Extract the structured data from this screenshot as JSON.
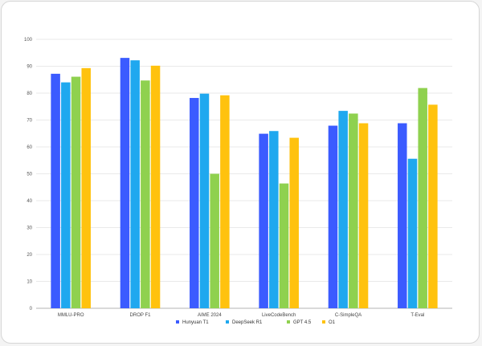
{
  "chart_data": {
    "type": "bar",
    "categories": [
      "MMLU-PRO",
      "DROP F1",
      "AIME 2024",
      "LiveCodeBench",
      "C-SimpleQA",
      "T-Eval"
    ],
    "series": [
      {
        "name": "Hunyuan T1",
        "color": "#3b5bff",
        "values": [
          87.2,
          93.1,
          78.2,
          64.9,
          67.9,
          68.8
        ]
      },
      {
        "name": "DeepSeek R1",
        "color": "#1fa8ef",
        "values": [
          84.0,
          92.2,
          79.8,
          65.9,
          73.4,
          55.6
        ]
      },
      {
        "name": "GPT 4.5",
        "color": "#8fd14f",
        "values": [
          86.1,
          84.7,
          50.0,
          46.4,
          72.4,
          81.9
        ]
      },
      {
        "name": "O1",
        "color": "#ffc20e",
        "values": [
          89.3,
          90.2,
          79.2,
          63.4,
          68.8,
          75.7
        ]
      }
    ],
    "y_ticks": [
      "0",
      "10",
      "20",
      "30",
      "40",
      "50",
      "60",
      "70",
      "80",
      "90",
      "100"
    ],
    "ylim": [
      0,
      100
    ],
    "grid": true,
    "legend": "bottom"
  }
}
